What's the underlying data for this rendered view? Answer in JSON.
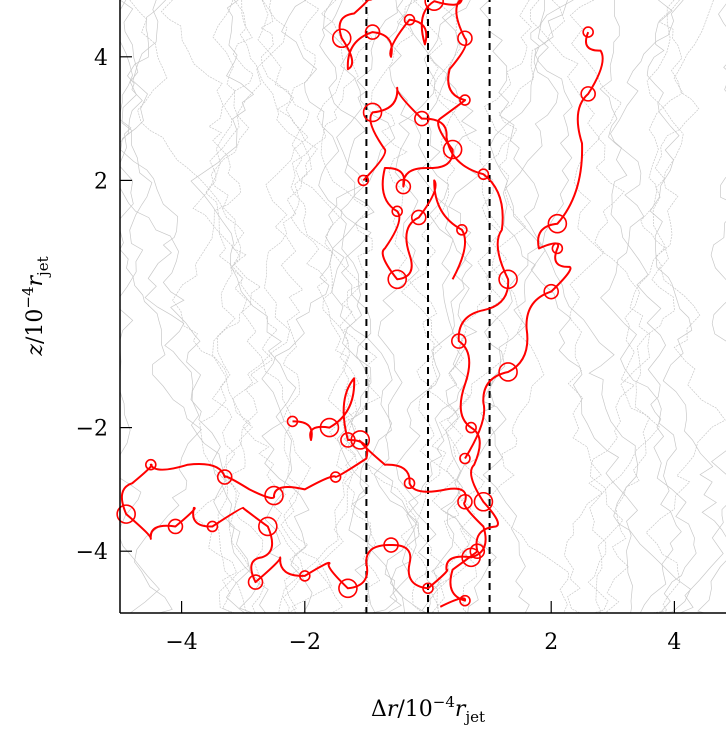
{
  "chart_data": {
    "type": "line",
    "title": "",
    "xlabel": {
      "pre": "Δ",
      "var": "r",
      "mid": "/10",
      "exp": "−4",
      "var2": "r",
      "sub": "jet"
    },
    "ylabel": {
      "var": "z",
      "mid": "/10",
      "exp": "−4",
      "var2": "r",
      "sub": "jet"
    },
    "xlim": [
      -5,
      5
    ],
    "ylim": [
      -5,
      5
    ],
    "x_ticks": [
      -4,
      -2,
      2,
      4
    ],
    "y_ticks": [
      -4,
      -2,
      2,
      4
    ],
    "x_tick_labels": [
      "−4",
      "−2",
      "2",
      "4"
    ],
    "y_tick_labels": [
      "−4",
      "−2",
      "2",
      "4"
    ],
    "vertical_dashed_lines": [
      -1.0,
      0.0,
      1.0
    ],
    "colors": {
      "highlight": "#ff0000",
      "background_traces": "#c8c8c8",
      "dashed": "#000000"
    },
    "series": [
      {
        "values": [
          [
            -0.95,
            5.0
          ],
          [
            -1.2,
            4.7
          ],
          [
            -1.4,
            4.3
          ],
          [
            -1.3,
            3.8
          ],
          [
            -0.9,
            4.4
          ],
          [
            -0.6,
            4.0
          ],
          [
            -0.3,
            4.6
          ],
          [
            -0.05,
            4.2
          ],
          [
            0.1,
            4.9
          ],
          [
            0.55,
            4.95
          ],
          [
            0.6,
            4.3
          ],
          [
            0.35,
            3.8
          ],
          [
            0.6,
            3.3
          ],
          [
            0.2,
            3.0
          ],
          [
            0.4,
            2.5
          ],
          [
            0.0,
            2.2
          ],
          [
            -0.4,
            1.9
          ],
          [
            -0.7,
            2.2
          ],
          [
            -0.5,
            1.5
          ],
          [
            -0.7,
            0.9
          ],
          [
            -0.5,
            0.4
          ],
          [
            -0.3,
            0.8
          ],
          [
            -0.15,
            1.4
          ],
          [
            0.1,
            2.0
          ],
          [
            0.55,
            1.2
          ],
          [
            0.4,
            0.4
          ]
        ]
      },
      {
        "values": [
          [
            -1.05,
            2.0
          ],
          [
            -0.7,
            2.5
          ],
          [
            -0.9,
            3.1
          ],
          [
            -0.5,
            3.5
          ],
          [
            -0.1,
            3.0
          ],
          [
            0.3,
            2.7
          ],
          [
            0.9,
            2.1
          ],
          [
            1.2,
            1.2
          ],
          [
            1.3,
            0.4
          ],
          [
            0.9,
            -0.1
          ],
          [
            0.5,
            -0.6
          ],
          [
            0.6,
            -1.3
          ],
          [
            0.7,
            -2.0
          ],
          [
            0.75,
            -2.6
          ],
          [
            0.9,
            -3.2
          ],
          [
            1.1,
            -3.6
          ],
          [
            0.8,
            -4.0
          ],
          [
            0.4,
            -4.3
          ],
          [
            0.6,
            -4.8
          ],
          [
            0.2,
            -4.9
          ]
        ]
      },
      {
        "values": [
          [
            -2.2,
            -1.9
          ],
          [
            -1.9,
            -2.2
          ],
          [
            -1.6,
            -2.0
          ],
          [
            -1.2,
            -1.2
          ],
          [
            -1.3,
            -2.2
          ],
          [
            -1.0,
            -2.5
          ],
          [
            -1.5,
            -2.8
          ],
          [
            -2.0,
            -3.0
          ],
          [
            -2.5,
            -3.1
          ],
          [
            -2.9,
            -3.0
          ],
          [
            -3.3,
            -2.8
          ],
          [
            -3.9,
            -2.6
          ],
          [
            -4.5,
            -2.6
          ],
          [
            -4.8,
            -2.9
          ],
          [
            -4.9,
            -3.4
          ],
          [
            -4.5,
            -3.8
          ],
          [
            -4.1,
            -3.6
          ],
          [
            -3.8,
            -3.3
          ],
          [
            -3.5,
            -3.6
          ],
          [
            -3.0,
            -3.3
          ],
          [
            -2.6,
            -3.6
          ],
          [
            -2.7,
            -4.1
          ],
          [
            -2.8,
            -4.5
          ],
          [
            -2.4,
            -4.1
          ],
          [
            -2.0,
            -4.4
          ],
          [
            -1.6,
            -4.2
          ],
          [
            -1.3,
            -4.6
          ],
          [
            -1.0,
            -4.2
          ],
          [
            -0.6,
            -3.9
          ],
          [
            -0.3,
            -4.2
          ],
          [
            0.0,
            -4.6
          ],
          [
            0.3,
            -4.3
          ],
          [
            0.7,
            -4.1
          ],
          [
            0.9,
            -3.6
          ],
          [
            0.6,
            -3.2
          ],
          [
            0.3,
            -3.0
          ],
          [
            -0.3,
            -2.9
          ],
          [
            -0.7,
            -2.6
          ],
          [
            -1.1,
            -2.2
          ]
        ]
      },
      {
        "values": [
          [
            0.6,
            -2.5
          ],
          [
            0.9,
            -1.6
          ],
          [
            1.3,
            -1.1
          ],
          [
            1.6,
            -0.4
          ],
          [
            2.0,
            0.2
          ],
          [
            2.3,
            0.6
          ],
          [
            2.1,
            0.9
          ],
          [
            1.8,
            0.9
          ],
          [
            2.1,
            1.3
          ],
          [
            2.5,
            2.6
          ],
          [
            2.6,
            3.4
          ],
          [
            2.8,
            4.1
          ],
          [
            2.6,
            4.4
          ]
        ]
      }
    ]
  }
}
